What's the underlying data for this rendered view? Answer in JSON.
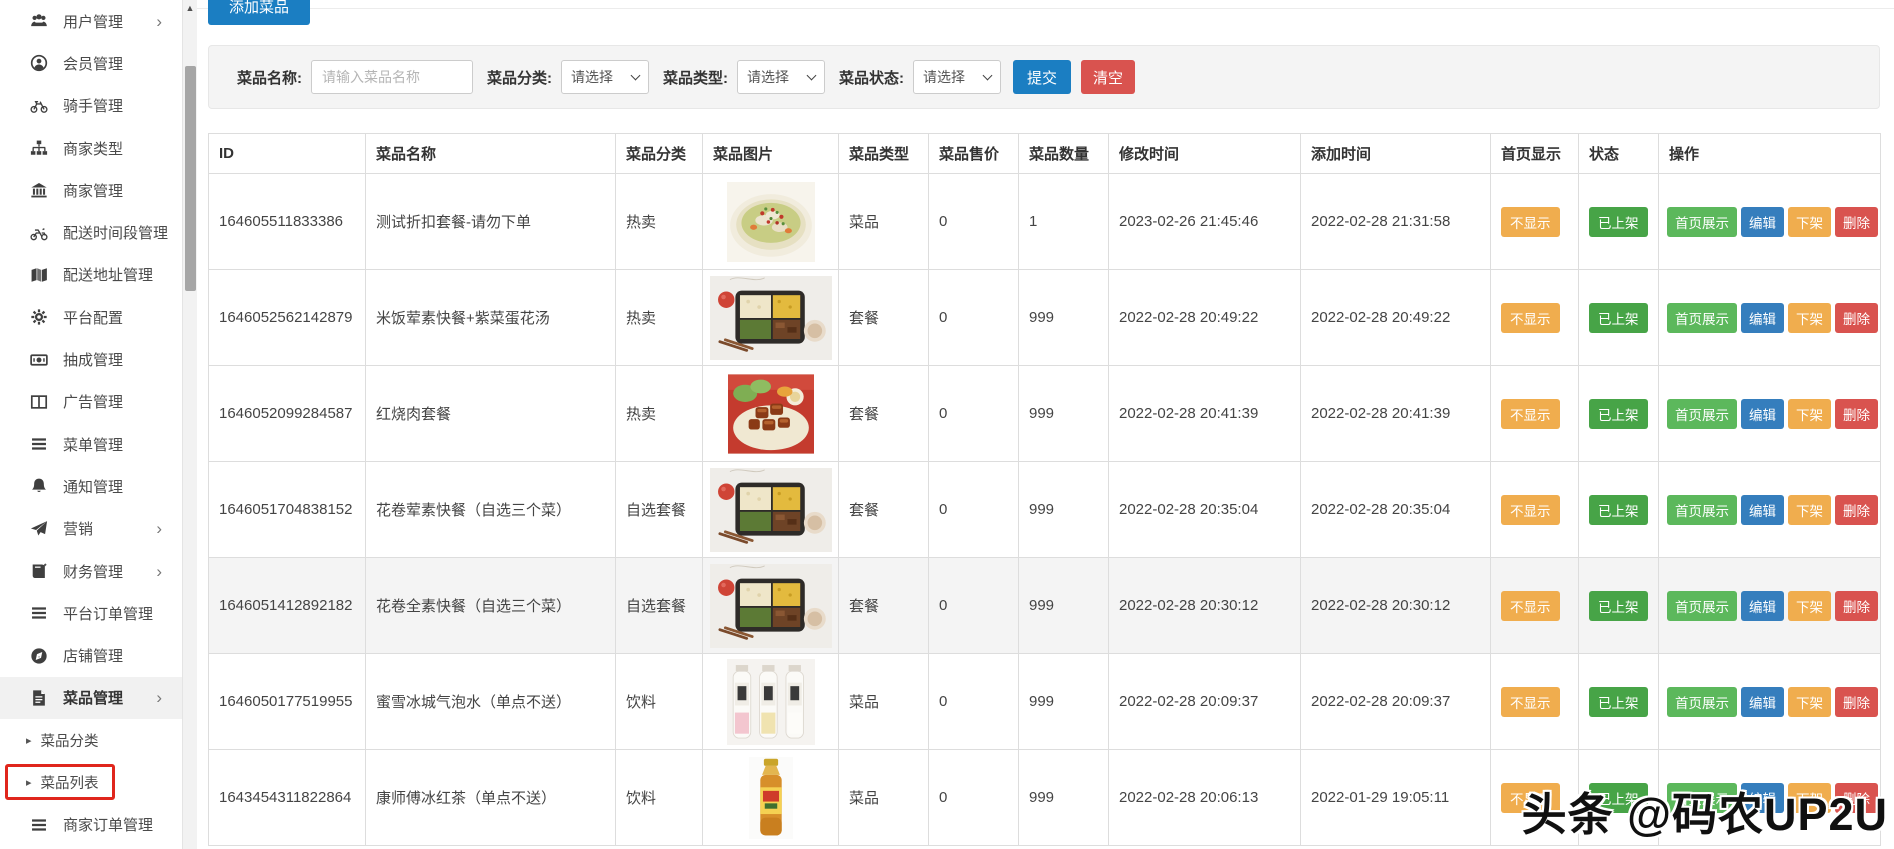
{
  "sidebar": {
    "items": [
      {
        "label": "用户管理",
        "icon": "users",
        "chevron": true
      },
      {
        "label": "会员管理",
        "icon": "member"
      },
      {
        "label": "骑手管理",
        "icon": "rider"
      },
      {
        "label": "商家类型",
        "icon": "sitemap"
      },
      {
        "label": "商家管理",
        "icon": "bank"
      },
      {
        "label": "配送时间段管理",
        "icon": "moto"
      },
      {
        "label": "配送地址管理",
        "icon": "map"
      },
      {
        "label": "平台配置",
        "icon": "gear"
      },
      {
        "label": "抽成管理",
        "icon": "money"
      },
      {
        "label": "广告管理",
        "icon": "ads"
      },
      {
        "label": "菜单管理",
        "icon": "bars"
      },
      {
        "label": "通知管理",
        "icon": "bell"
      },
      {
        "label": "营销",
        "icon": "send",
        "chevron": true
      },
      {
        "label": "财务管理",
        "icon": "book",
        "chevron": true
      },
      {
        "label": "平台订单管理",
        "icon": "bars"
      },
      {
        "label": "店铺管理",
        "icon": "shop"
      },
      {
        "label": "菜品管理",
        "icon": "file",
        "chevron": true,
        "active": true
      },
      {
        "label": "菜品分类",
        "sub": true
      },
      {
        "label": "菜品列表",
        "sub": true,
        "highlighted": true
      },
      {
        "label": "商家订单管理",
        "icon": "bars"
      }
    ]
  },
  "toolbar": {
    "add_button": "添加菜品"
  },
  "filters": {
    "name_label": "菜品名称:",
    "name_placeholder": "请输入菜品名称",
    "category_label": "菜品分类:",
    "type_label": "菜品类型:",
    "status_label": "菜品状态:",
    "select_placeholder": "请选择",
    "submit": "提交",
    "clear": "清空"
  },
  "table": {
    "columns": [
      "ID",
      "菜品名称",
      "菜品分类",
      "菜品图片",
      "菜品类型",
      "菜品售价",
      "菜品数量",
      "修改时间",
      "添加时间",
      "首页显示",
      "状态",
      "操作"
    ],
    "badges": {
      "home_hidden": "不显示",
      "status_on": "已上架"
    },
    "actions": [
      "首页展示",
      "编辑",
      "下架",
      "删除"
    ],
    "rows": [
      {
        "id": "164605511833386",
        "name": "测试折扣套餐-请勿下单",
        "category": "热卖",
        "image": "spicy-dish",
        "type": "菜品",
        "price": "0",
        "qty": "1",
        "modified": "2023-02-26 21:45:46",
        "added": "2022-02-28 21:31:58"
      },
      {
        "id": "1646052562142879",
        "name": "米饭荤素快餐+紫菜蛋花汤",
        "category": "热卖",
        "image": "bento",
        "type": "套餐",
        "price": "0",
        "qty": "999",
        "modified": "2022-02-28 20:49:22",
        "added": "2022-02-28 20:49:22"
      },
      {
        "id": "1646052099284587",
        "name": "红烧肉套餐",
        "category": "热卖",
        "image": "braised-pork",
        "type": "套餐",
        "price": "0",
        "qty": "999",
        "modified": "2022-02-28 20:41:39",
        "added": "2022-02-28 20:41:39"
      },
      {
        "id": "1646051704838152",
        "name": "花卷荤素快餐（自选三个菜）",
        "category": "自选套餐",
        "image": "bento",
        "type": "套餐",
        "price": "0",
        "qty": "999",
        "modified": "2022-02-28 20:35:04",
        "added": "2022-02-28 20:35:04"
      },
      {
        "id": "1646051412892182",
        "name": "花卷全素快餐（自选三个菜）",
        "category": "自选套餐",
        "image": "bento",
        "type": "套餐",
        "price": "0",
        "qty": "999",
        "modified": "2022-02-28 20:30:12",
        "added": "2022-02-28 20:30:12",
        "hover": true
      },
      {
        "id": "1646050177519955",
        "name": "蜜雪冰城气泡水（单点不送）",
        "category": "饮料",
        "image": "soda-bottles",
        "type": "菜品",
        "price": "0",
        "qty": "999",
        "modified": "2022-02-28 20:09:37",
        "added": "2022-02-28 20:09:37"
      },
      {
        "id": "1643454311822864",
        "name": "康师傅冰红茶（单点不送）",
        "category": "饮料",
        "image": "tea-bottle",
        "type": "菜品",
        "price": "0",
        "qty": "999",
        "modified": "2022-02-28 20:06:13",
        "added": "2022-01-29 19:05:11"
      }
    ]
  },
  "watermark": {
    "text": "头条 @码农UP2U"
  },
  "colors": {
    "primary_blue": "#1b7ec2",
    "edit_blue": "#357ebd",
    "success_green": "#47a447",
    "action_green": "#5cb85c",
    "warning_orange": "#f0ad4e",
    "danger_red": "#d9534f",
    "active_item_bg": "#f1f1f1",
    "highlight_box": "#e0261c"
  }
}
